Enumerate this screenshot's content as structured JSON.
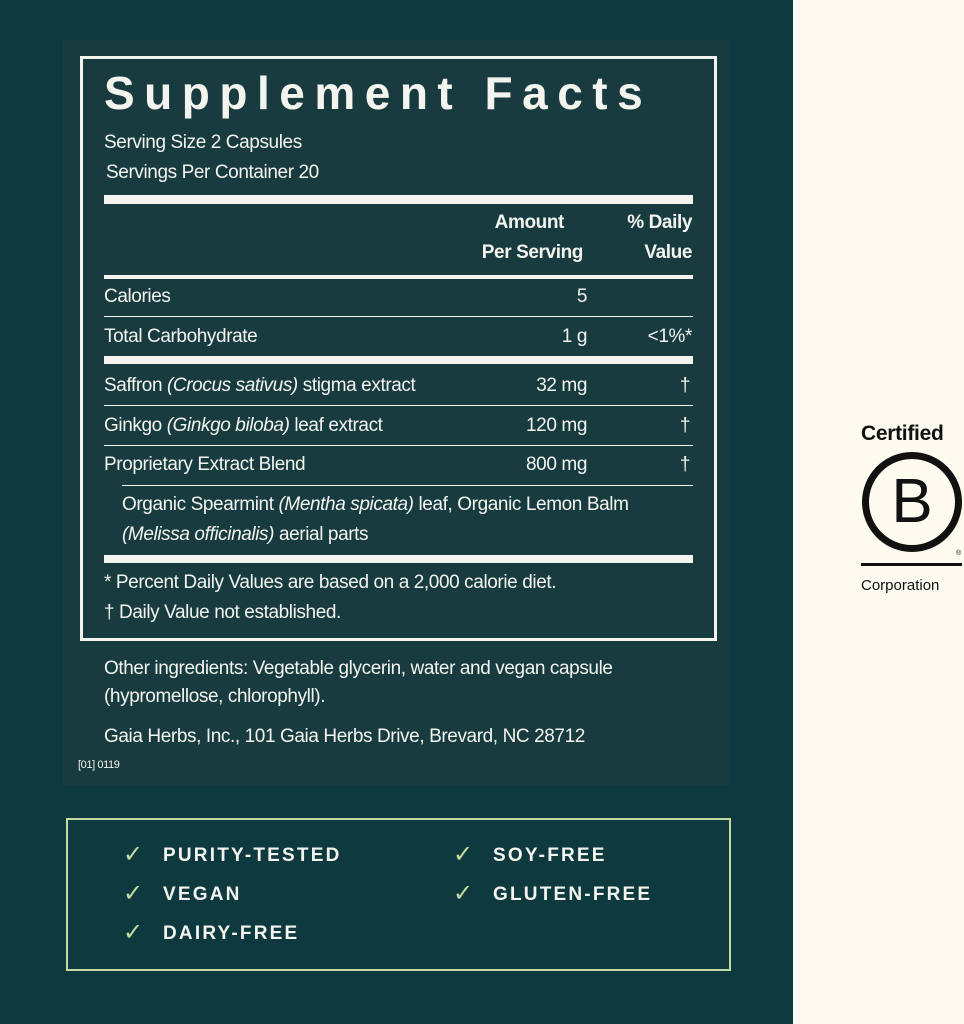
{
  "title": "Supplement Facts",
  "serving_size": "Serving Size 2 Capsules",
  "servings_per_container": "Servings Per Container 20",
  "header": {
    "amount_1": "Amount",
    "amount_2": "Per Serving",
    "dv_1": "% Daily",
    "dv_2": "Value"
  },
  "rows": [
    {
      "name": "Calories",
      "amount": "5",
      "dv": ""
    },
    {
      "name": "Total Carbohydrate",
      "amount": "1 g",
      "dv": "<1%*"
    },
    {
      "name_pre": "Saffron ",
      "name_latin": "(Crocus sativus)",
      "name_post": " stigma extract",
      "amount": "32 mg",
      "dv": "†"
    },
    {
      "name_pre": "Ginkgo ",
      "name_latin": "(Ginkgo biloba)",
      "name_post": " leaf extract",
      "amount": "120 mg",
      "dv": "†"
    },
    {
      "name": "Proprietary Extract Blend",
      "amount": "800 mg",
      "dv": "†"
    }
  ],
  "blend": {
    "l1_pre": "Organic Spearmint ",
    "l1_latin": "(Mentha spicata)",
    "l1_post": " leaf, Organic Lemon Balm",
    "l2_latin": "(Melissa officinalis)",
    "l2_post": " aerial parts"
  },
  "footnotes": [
    "*  Percent Daily Values are based on a 2,000 calorie diet.",
    "† Daily Value not established."
  ],
  "other_ingredients": [
    "Other ingredients: Vegetable glycerin, water and vegan capsule",
    "(hypromellose, chlorophyll)."
  ],
  "address": "Gaia Herbs, Inc., 101 Gaia Herbs Drive, Brevard, NC 28712",
  "code": "[01] 0119",
  "claims": [
    "PURITY-TESTED",
    "VEGAN",
    "DAIRY-FREE",
    "SOY-FREE",
    "GLUTEN-FREE"
  ],
  "bcorp": {
    "top": "Certified",
    "letter": "B",
    "bottom": "Corporation",
    "reg": "®"
  },
  "colors": {
    "background": "#0e393e",
    "panel": "#183b40",
    "accent": "#c3dc9e",
    "side": "#fdfaf0"
  }
}
